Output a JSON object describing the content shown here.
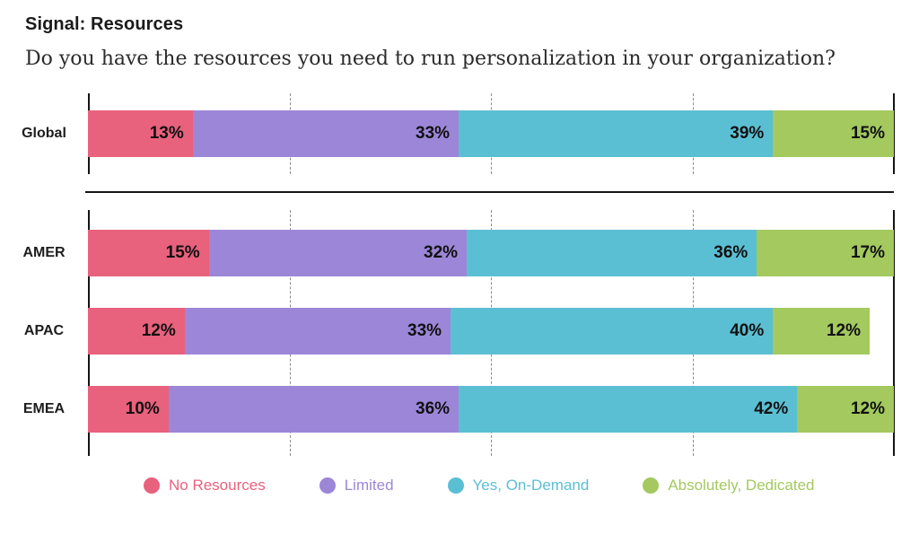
{
  "header": {
    "title": "Signal: Resources",
    "subtitle": "Do you have the resources you need to run personalization in your organization?"
  },
  "chart_data": {
    "type": "bar",
    "stacked": true,
    "orientation": "horizontal",
    "unit": "%",
    "title": "Signal: Resources",
    "subtitle": "Do you have the resources you need to run personalization in your organization?",
    "categories": [
      "Global",
      "AMER",
      "APAC",
      "EMEA"
    ],
    "groups": [
      [
        "Global"
      ],
      [
        "AMER",
        "APAC",
        "EMEA"
      ]
    ],
    "series": [
      {
        "name": "No Resources",
        "color": "#E8617D",
        "values": [
          13,
          15,
          12,
          10
        ]
      },
      {
        "name": "Limited",
        "color": "#9C86D8",
        "values": [
          33,
          32,
          33,
          36
        ]
      },
      {
        "name": "Yes, On-Demand",
        "color": "#5BBFD3",
        "values": [
          39,
          36,
          40,
          42
        ]
      },
      {
        "name": "Absolutely, Dedicated",
        "color": "#A3C95F",
        "values": [
          15,
          17,
          12,
          12
        ]
      }
    ],
    "xlim": [
      0,
      100
    ],
    "gridlines_percent": [
      25,
      50,
      75
    ],
    "axis_edge_color": "#151515",
    "gridline_color": "#8c8c8c",
    "value_label_format": "{value}%",
    "value_label_position": "inside-right",
    "legend_position": "bottom"
  }
}
